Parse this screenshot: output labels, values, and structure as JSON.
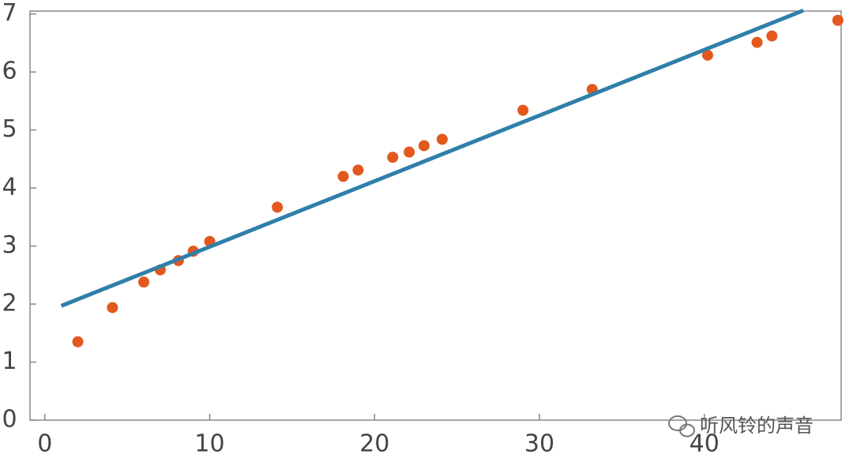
{
  "chart_data": {
    "type": "scatter",
    "series": [
      {
        "type": "scatter",
        "color": "#e2581d",
        "x": [
          2.0,
          4.1,
          6.0,
          7.0,
          8.1,
          9.0,
          10.0,
          14.1,
          18.1,
          19.0,
          21.1,
          22.1,
          23.0,
          24.1,
          29.0,
          33.2,
          40.2,
          43.2,
          44.1,
          48.1
        ],
        "values": [
          1.35,
          1.94,
          2.38,
          2.59,
          2.75,
          2.91,
          3.08,
          3.67,
          4.2,
          4.31,
          4.53,
          4.62,
          4.73,
          4.84,
          5.34,
          5.7,
          6.29,
          6.51,
          6.62,
          6.89
        ]
      },
      {
        "type": "line",
        "color": "#2f7fa9",
        "x": [
          1,
          46
        ],
        "values": [
          1.97,
          7.06
        ]
      }
    ],
    "xlim": [
      -0.9,
      48.3
    ],
    "ylim": [
      0,
      7.05
    ],
    "xticks": [
      0,
      10,
      20,
      30,
      40
    ],
    "yticks": [
      0,
      1,
      2,
      3,
      4,
      5,
      6,
      7
    ],
    "watermark": "听风铃的声音"
  }
}
